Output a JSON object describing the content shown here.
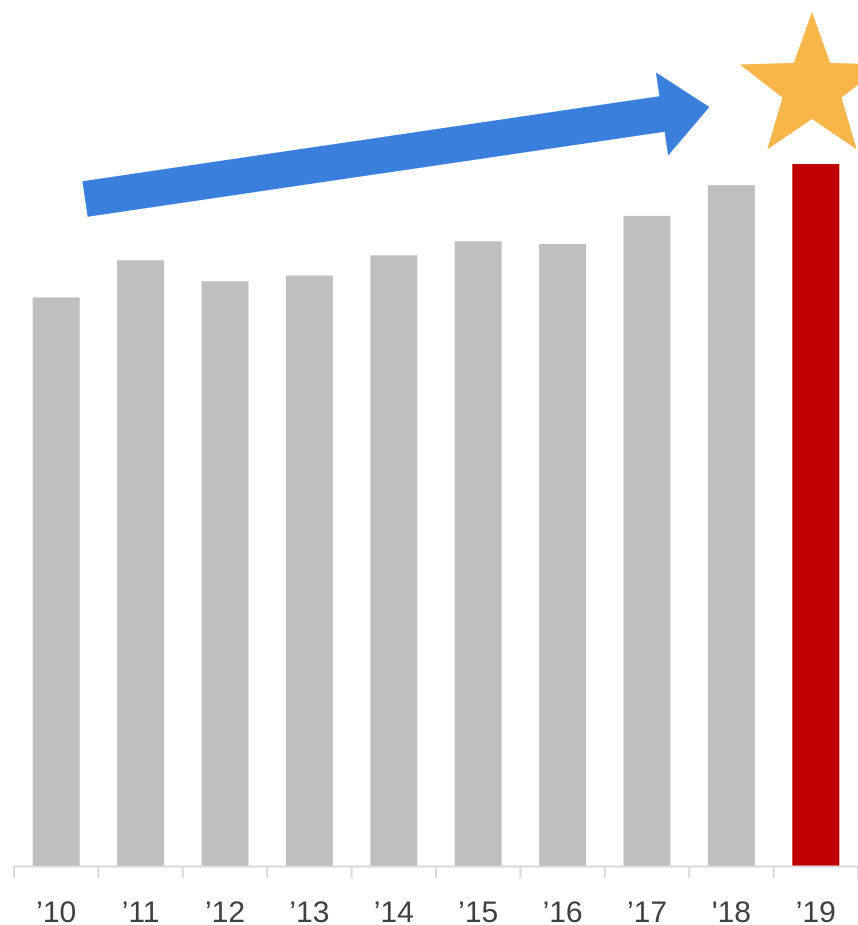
{
  "chart_data": {
    "type": "bar",
    "categories": [
      "’10",
      "’11",
      "’12",
      "’13",
      "’14",
      "’15",
      "’16",
      "’17",
      "'18",
      "’19"
    ],
    "values": [
      81,
      86.3,
      83.3,
      84.1,
      87,
      89,
      88.6,
      92.6,
      97,
      100
    ],
    "highlight_index": 9,
    "ylim": [
      0,
      100
    ],
    "grid": false,
    "legend": "none",
    "title": "",
    "xlabel": "",
    "ylabel": "",
    "colors": {
      "bar": "#bfbfbf",
      "highlight": "#c00000",
      "axis": "#d9d9d9",
      "tick_label": "#404040",
      "arrow": "#3a7fdc",
      "star": "#f7b54a"
    },
    "annotations": {
      "trend": "arrow-up-right-icon",
      "highlight_marker": "star-icon"
    }
  }
}
